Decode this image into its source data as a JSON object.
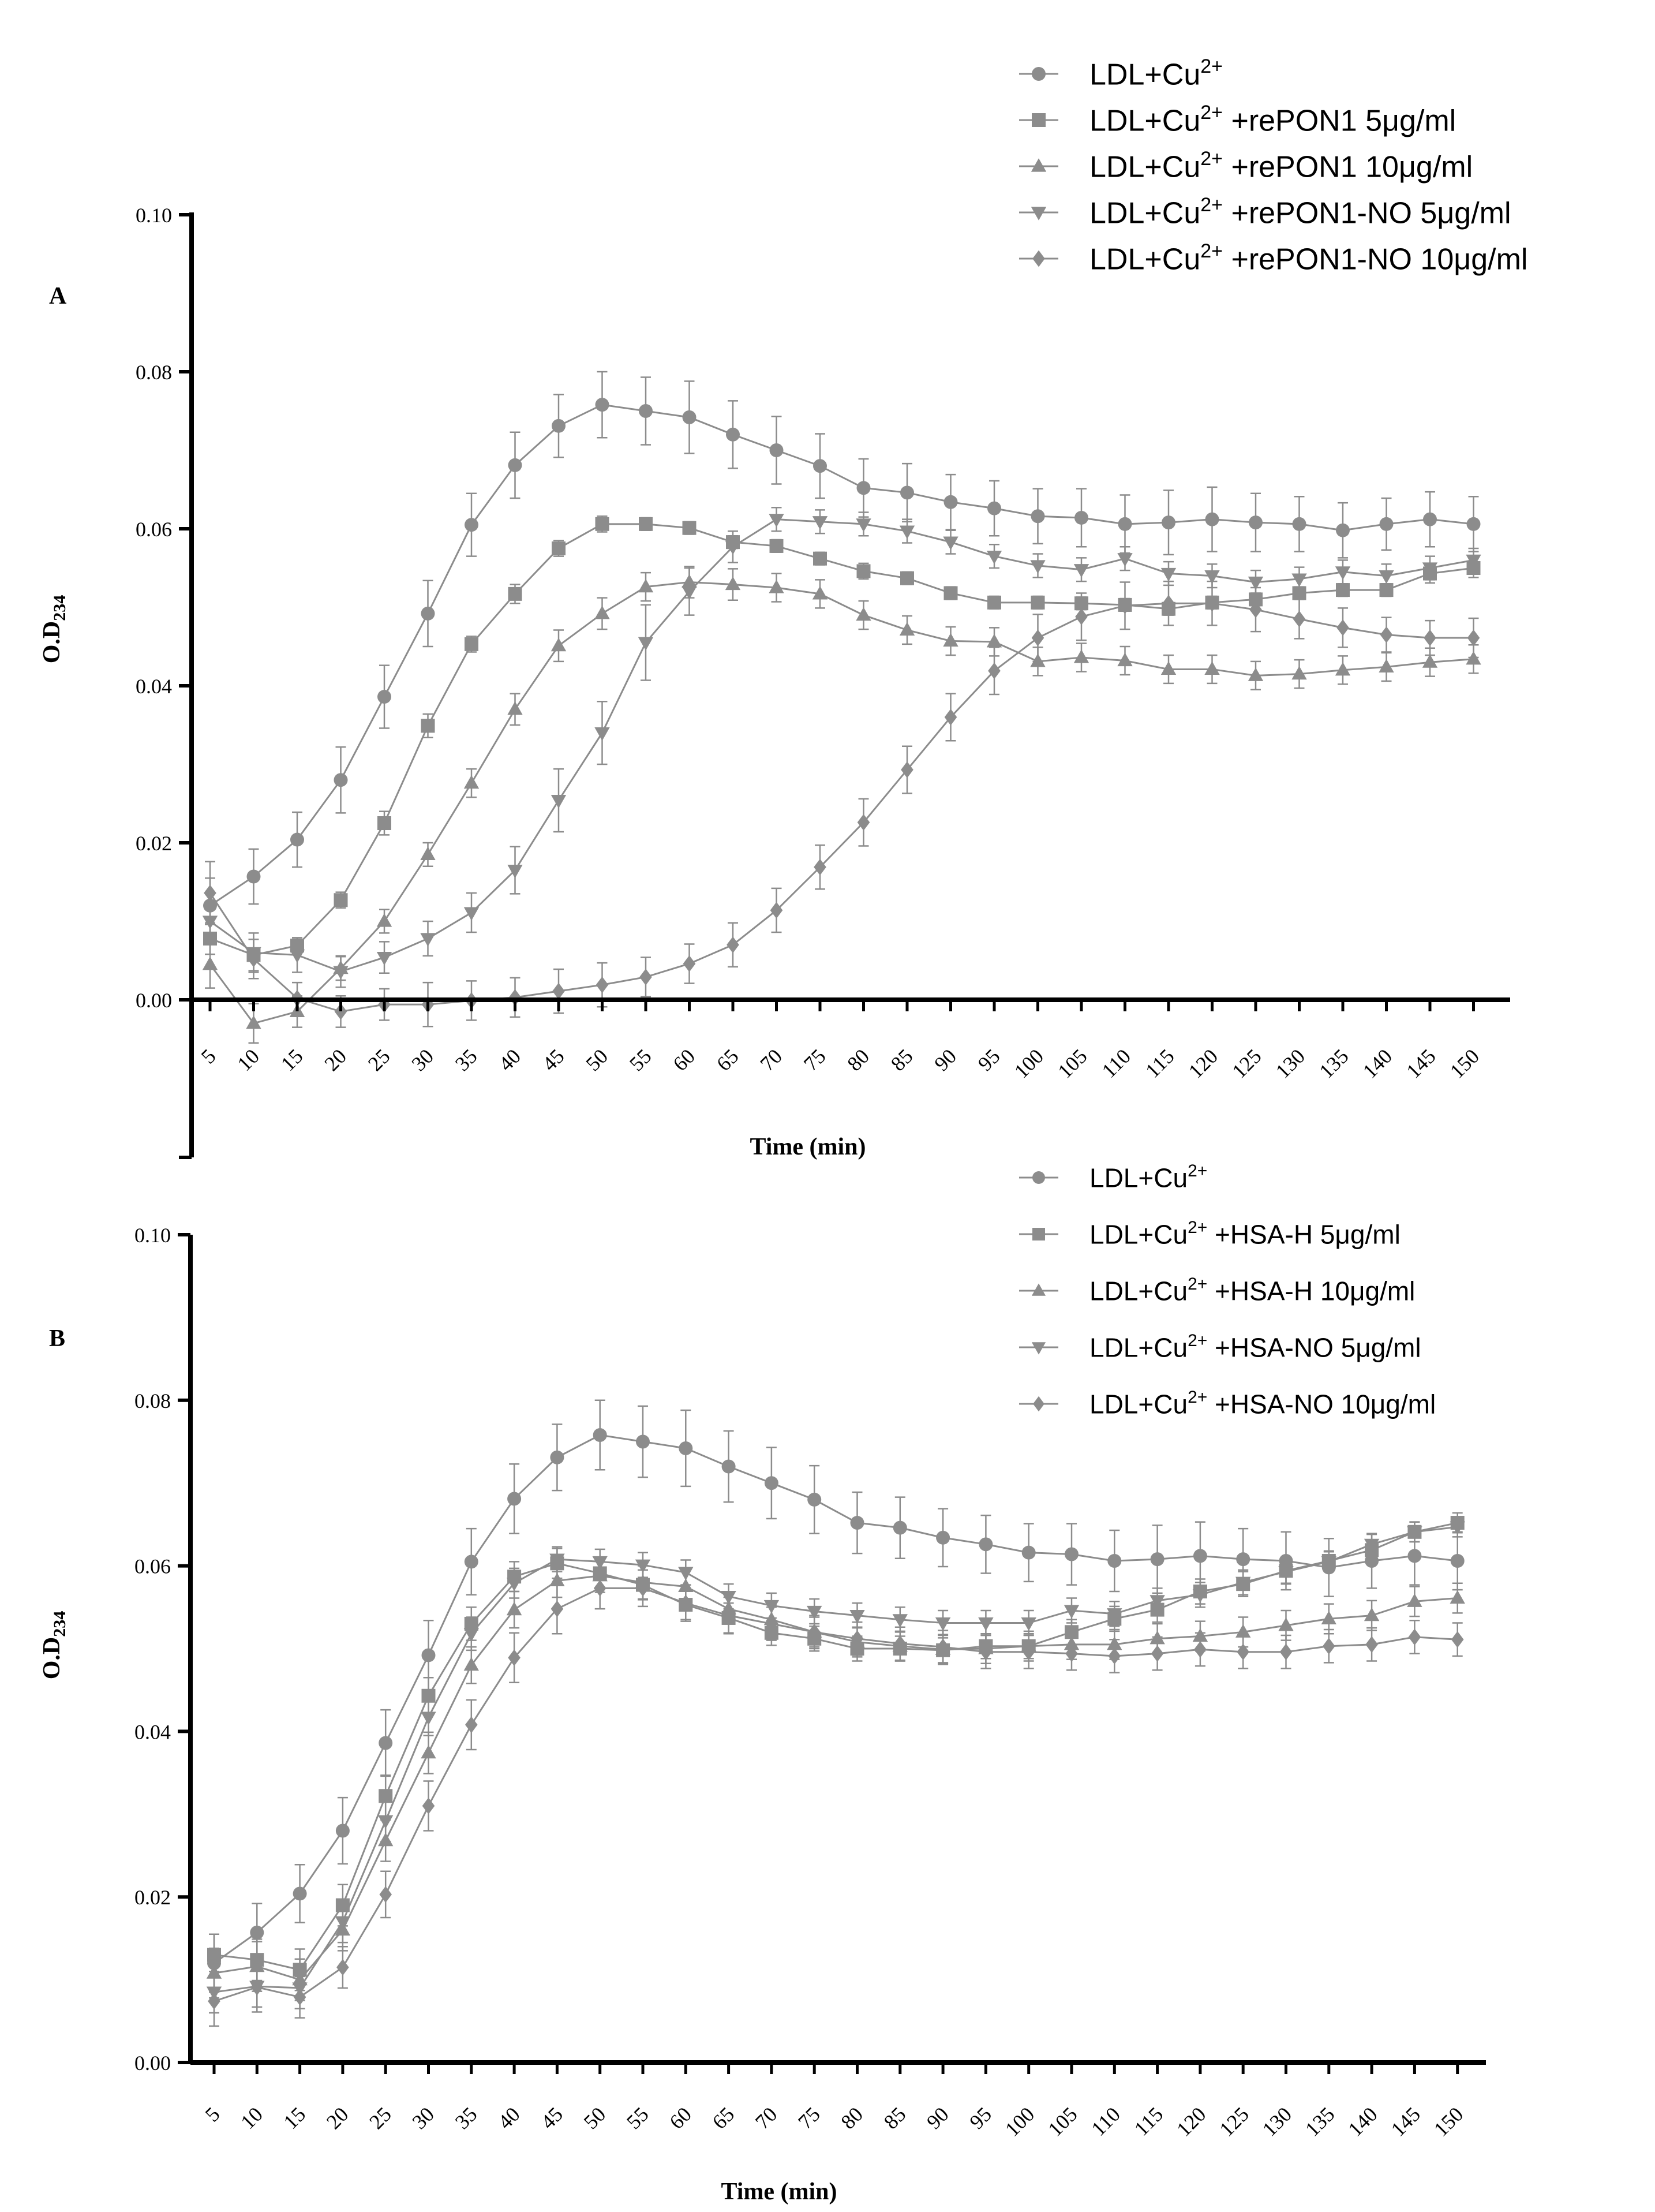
{
  "colors": {
    "axis": "#000000",
    "series": "#8c8c8c",
    "text": "#000000"
  },
  "chart_data": [
    {
      "type": "line",
      "panel_label": "A",
      "ylabel_main": "O.D",
      "ylabel_sub": "234",
      "xlabel": "Time (min)",
      "ylim": [
        -0.02,
        0.1
      ],
      "yticks": [
        "0.00",
        "0.02",
        "0.04",
        "0.06",
        "0.08",
        "0.10"
      ],
      "ytick_values": [
        0.0,
        0.02,
        0.04,
        0.06,
        0.08,
        0.1
      ],
      "x": [
        5,
        10,
        15,
        20,
        25,
        30,
        35,
        40,
        45,
        50,
        55,
        60,
        65,
        70,
        75,
        80,
        85,
        90,
        95,
        100,
        105,
        110,
        115,
        120,
        125,
        130,
        135,
        140,
        145,
        150
      ],
      "x_tick_labels": [
        "5",
        "10",
        "15",
        "20",
        "25",
        "30",
        "35",
        "40",
        "45",
        "50",
        "55",
        "60",
        "65",
        "70",
        "75",
        "80",
        "85",
        "90",
        "95",
        "100",
        "105",
        "110",
        "115",
        "120",
        "125",
        "130",
        "135",
        "140",
        "145",
        "150"
      ],
      "legend_position": "top-right",
      "series": [
        {
          "marker": "circle",
          "legend_base": "LDL+Cu",
          "legend_sup": "2+",
          "legend_rest": "",
          "values": [
            0.012,
            0.0157,
            0.0204,
            0.028,
            0.0386,
            0.0492,
            0.0605,
            0.0681,
            0.0731,
            0.0758,
            0.075,
            0.0742,
            0.072,
            0.07,
            0.068,
            0.0652,
            0.0646,
            0.0634,
            0.0626,
            0.0616,
            0.0614,
            0.0606,
            0.0608,
            0.0612,
            0.0608,
            0.0606,
            0.0598,
            0.0606,
            0.0612,
            0.0606
          ],
          "errors": [
            0.0035,
            0.0035,
            0.0035,
            0.0042,
            0.004,
            0.0042,
            0.004,
            0.0042,
            0.004,
            0.0042,
            0.0043,
            0.0046,
            0.0043,
            0.0043,
            0.0041,
            0.0037,
            0.0037,
            0.0035,
            0.0035,
            0.0035,
            0.0037,
            0.0037,
            0.0041,
            0.0041,
            0.0037,
            0.0035,
            0.0035,
            0.0033,
            0.0035,
            0.0035
          ]
        },
        {
          "marker": "square",
          "legend_base": "LDL+Cu",
          "legend_sup": "2+",
          "legend_rest": " +rePON1 5μg/ml",
          "values": [
            0.0078,
            0.0057,
            0.0069,
            0.0127,
            0.0225,
            0.0349,
            0.0453,
            0.0517,
            0.0575,
            0.0606,
            0.0606,
            0.0601,
            0.0583,
            0.0578,
            0.0562,
            0.0546,
            0.0537,
            0.0518,
            0.0506,
            0.0506,
            0.0505,
            0.0503,
            0.0498,
            0.0506,
            0.051,
            0.0518,
            0.0522,
            0.0522,
            0.0543,
            0.055
          ],
          "errors": [
            0.002,
            0.002,
            0.001,
            0.001,
            0.0015,
            0.0015,
            0.001,
            0.0012,
            0.001,
            0.001,
            0.0008,
            0.0008,
            0.0008,
            0.0008,
            0.0008,
            0.001,
            0.0008,
            0.0008,
            0.0008,
            0.0008,
            0.0008,
            0.0008,
            0.0008,
            0.0008,
            0.0008,
            0.0008,
            0.0008,
            0.0008,
            0.0012,
            0.0012
          ]
        },
        {
          "marker": "triangle-up",
          "legend_base": "LDL+Cu",
          "legend_sup": "2+",
          "legend_rest": " +rePON1 10μg/ml",
          "values": [
            0.0045,
            -0.003,
            -0.0015,
            0.004,
            0.01,
            0.0185,
            0.0276,
            0.037,
            0.0451,
            0.0492,
            0.0526,
            0.0532,
            0.0529,
            0.0525,
            0.0517,
            0.049,
            0.0471,
            0.0457,
            0.0456,
            0.0431,
            0.0436,
            0.0432,
            0.0421,
            0.0421,
            0.0413,
            0.0415,
            0.042,
            0.0424,
            0.043,
            0.0434
          ],
          "errors": [
            0.003,
            0.0025,
            0.002,
            0.0015,
            0.0015,
            0.0015,
            0.0018,
            0.002,
            0.002,
            0.002,
            0.0018,
            0.002,
            0.002,
            0.0018,
            0.0018,
            0.0018,
            0.0018,
            0.0018,
            0.0018,
            0.0018,
            0.0018,
            0.0018,
            0.0018,
            0.0018,
            0.0018,
            0.0018,
            0.0018,
            0.0018,
            0.0018,
            0.0018
          ]
        },
        {
          "marker": "triangle-down",
          "legend_base": "LDL+Cu",
          "legend_sup": "2+",
          "legend_rest": " +rePON1-NO 5μg/ml",
          "values": [
            0.01,
            0.006,
            0.0057,
            0.0036,
            0.0054,
            0.0078,
            0.0111,
            0.0165,
            0.0254,
            0.034,
            0.0455,
            0.052,
            0.0577,
            0.0612,
            0.0609,
            0.0606,
            0.0597,
            0.0583,
            0.0565,
            0.0553,
            0.0548,
            0.0562,
            0.0543,
            0.054,
            0.0532,
            0.0536,
            0.0545,
            0.054,
            0.055,
            0.056
          ],
          "errors": [
            0.0025,
            0.0025,
            0.0022,
            0.002,
            0.002,
            0.0022,
            0.0025,
            0.003,
            0.004,
            0.004,
            0.0048,
            0.003,
            0.002,
            0.0015,
            0.0015,
            0.0015,
            0.0015,
            0.0015,
            0.0015,
            0.0015,
            0.0015,
            0.0015,
            0.0015,
            0.0015,
            0.0015,
            0.0015,
            0.0015,
            0.0015,
            0.0015,
            0.0015
          ]
        },
        {
          "marker": "diamond",
          "legend_base": "LDL+Cu",
          "legend_sup": "2+",
          "legend_rest": " +rePON1-NO 10μg/ml",
          "values": [
            0.0136,
            0.0052,
            0.0002,
            -0.0015,
            -0.0006,
            -0.0006,
            -0.0001,
            0.0003,
            0.0011,
            0.0019,
            0.0029,
            0.0046,
            0.007,
            0.0114,
            0.0169,
            0.0226,
            0.0293,
            0.036,
            0.0419,
            0.0461,
            0.0488,
            0.0502,
            0.0505,
            0.0505,
            0.0497,
            0.0485,
            0.0474,
            0.0465,
            0.0461,
            0.0461
          ],
          "errors": [
            0.004,
            0.0025,
            0.002,
            0.002,
            0.002,
            0.0028,
            0.0025,
            0.0025,
            0.0028,
            0.0028,
            0.0025,
            0.0025,
            0.0028,
            0.0028,
            0.0028,
            0.003,
            0.003,
            0.003,
            0.003,
            0.003,
            0.003,
            0.003,
            0.0028,
            0.0028,
            0.0028,
            0.0025,
            0.0025,
            0.0022,
            0.0022,
            0.0025
          ]
        }
      ]
    },
    {
      "type": "line",
      "panel_label": "B",
      "ylabel_main": "O.D",
      "ylabel_sub": "234",
      "xlabel": "Time (min)",
      "ylim": [
        0.0,
        0.1
      ],
      "yticks": [
        "0.00",
        "0.02",
        "0.04",
        "0.06",
        "0.08",
        "0.10"
      ],
      "ytick_values": [
        0.0,
        0.02,
        0.04,
        0.06,
        0.08,
        0.1
      ],
      "x": [
        5,
        10,
        15,
        20,
        25,
        30,
        35,
        40,
        45,
        50,
        55,
        60,
        65,
        70,
        75,
        80,
        85,
        90,
        95,
        100,
        105,
        110,
        115,
        120,
        125,
        130,
        135,
        140,
        145,
        150
      ],
      "x_tick_labels": [
        "5",
        "10",
        "15",
        "20",
        "25",
        "30",
        "35",
        "40",
        "45",
        "50",
        "55",
        "60",
        "65",
        "70",
        "75",
        "80",
        "85",
        "90",
        "95",
        "100",
        "105",
        "110",
        "115",
        "120",
        "125",
        "130",
        "135",
        "140",
        "145",
        "150"
      ],
      "legend_position": "top-right",
      "series": [
        {
          "marker": "circle",
          "legend_base": "LDL+Cu",
          "legend_sup": "2+",
          "legend_rest": "",
          "values": [
            0.012,
            0.0157,
            0.0204,
            0.028,
            0.0386,
            0.0492,
            0.0605,
            0.0681,
            0.0731,
            0.0758,
            0.075,
            0.0742,
            0.072,
            0.07,
            0.068,
            0.0652,
            0.0646,
            0.0634,
            0.0626,
            0.0616,
            0.0614,
            0.0606,
            0.0608,
            0.0612,
            0.0608,
            0.0606,
            0.0598,
            0.0606,
            0.0612,
            0.0606
          ],
          "errors": [
            0.0035,
            0.0035,
            0.0035,
            0.004,
            0.004,
            0.0042,
            0.004,
            0.0042,
            0.004,
            0.0042,
            0.0043,
            0.0046,
            0.0043,
            0.0043,
            0.0041,
            0.0037,
            0.0037,
            0.0035,
            0.0035,
            0.0035,
            0.0037,
            0.0037,
            0.0041,
            0.0041,
            0.0037,
            0.0035,
            0.0035,
            0.0033,
            0.0035,
            0.0035
          ]
        },
        {
          "marker": "square",
          "legend_base": "LDL+Cu",
          "legend_sup": "2+",
          "legend_rest": " +HSA-H 5μg/ml",
          "values": [
            0.013,
            0.0124,
            0.0112,
            0.019,
            0.0322,
            0.0443,
            0.053,
            0.0587,
            0.0603,
            0.0591,
            0.0577,
            0.0553,
            0.0537,
            0.0519,
            0.0512,
            0.05,
            0.05,
            0.0498,
            0.0503,
            0.0503,
            0.052,
            0.0536,
            0.0547,
            0.0569,
            0.0578,
            0.0594,
            0.0606,
            0.0619,
            0.0641,
            0.0652
          ],
          "errors": [
            0.0025,
            0.0025,
            0.0025,
            0.0025,
            0.0025,
            0.0022,
            0.002,
            0.0018,
            0.0018,
            0.0018,
            0.0018,
            0.0018,
            0.0018,
            0.0015,
            0.0015,
            0.0015,
            0.0015,
            0.0015,
            0.0015,
            0.0015,
            0.0015,
            0.0015,
            0.0015,
            0.0015,
            0.0015,
            0.0015,
            0.0012,
            0.0012,
            0.0012,
            0.0012
          ]
        },
        {
          "marker": "triangle-up",
          "legend_base": "LDL+Cu",
          "legend_sup": "2+",
          "legend_rest": " +HSA-H 10μg/ml",
          "values": [
            0.0108,
            0.0116,
            0.01,
            0.016,
            0.0268,
            0.0374,
            0.048,
            0.0547,
            0.0582,
            0.0588,
            0.058,
            0.0575,
            0.0548,
            0.0535,
            0.052,
            0.0508,
            0.0503,
            0.0499,
            0.05,
            0.0503,
            0.0505,
            0.0505,
            0.0512,
            0.0515,
            0.052,
            0.0528,
            0.0536,
            0.054,
            0.0557,
            0.0561
          ],
          "errors": [
            0.003,
            0.003,
            0.0025,
            0.0025,
            0.0025,
            0.0025,
            0.0022,
            0.0022,
            0.002,
            0.002,
            0.002,
            0.002,
            0.0018,
            0.0018,
            0.0018,
            0.0018,
            0.0018,
            0.0018,
            0.0018,
            0.0018,
            0.0018,
            0.0018,
            0.0018,
            0.0018,
            0.0018,
            0.0018,
            0.0018,
            0.0018,
            0.0018,
            0.0018
          ]
        },
        {
          "marker": "triangle-down",
          "legend_base": "LDL+Cu",
          "legend_sup": "2+",
          "legend_rest": " +HSA-NO 5μg/ml",
          "values": [
            0.0085,
            0.0092,
            0.009,
            0.017,
            0.0292,
            0.0417,
            0.0518,
            0.0579,
            0.0608,
            0.0605,
            0.0601,
            0.0592,
            0.0563,
            0.0552,
            0.0545,
            0.054,
            0.0535,
            0.0531,
            0.0531,
            0.0531,
            0.0546,
            0.0542,
            0.0558,
            0.0565,
            0.058,
            0.0593,
            0.0605,
            0.0626,
            0.0641,
            0.0647
          ],
          "errors": [
            0.0025,
            0.0025,
            0.0025,
            0.0025,
            0.0025,
            0.0022,
            0.002,
            0.0018,
            0.0015,
            0.0015,
            0.0015,
            0.0015,
            0.0015,
            0.0015,
            0.0015,
            0.0015,
            0.0015,
            0.0015,
            0.0015,
            0.0015,
            0.0015,
            0.0015,
            0.0015,
            0.0015,
            0.0015,
            0.0015,
            0.0012,
            0.0012,
            0.0012,
            0.0012
          ]
        },
        {
          "marker": "diamond",
          "legend_base": "LDL+Cu",
          "legend_sup": "2+",
          "legend_rest": " +HSA-NO 10μg/ml",
          "values": [
            0.0074,
            0.0091,
            0.0079,
            0.0115,
            0.0203,
            0.031,
            0.0408,
            0.0489,
            0.0548,
            0.0573,
            0.0573,
            0.0555,
            0.054,
            0.053,
            0.052,
            0.0512,
            0.0506,
            0.0502,
            0.0496,
            0.0496,
            0.0494,
            0.0491,
            0.0494,
            0.0499,
            0.0496,
            0.0496,
            0.0503,
            0.0505,
            0.0514,
            0.0511
          ],
          "errors": [
            0.003,
            0.003,
            0.0025,
            0.0025,
            0.0028,
            0.003,
            0.003,
            0.003,
            0.003,
            0.0025,
            0.0022,
            0.0022,
            0.0022,
            0.002,
            0.002,
            0.002,
            0.002,
            0.002,
            0.002,
            0.002,
            0.002,
            0.002,
            0.002,
            0.002,
            0.002,
            0.002,
            0.002,
            0.002,
            0.002,
            0.002
          ]
        }
      ]
    }
  ]
}
